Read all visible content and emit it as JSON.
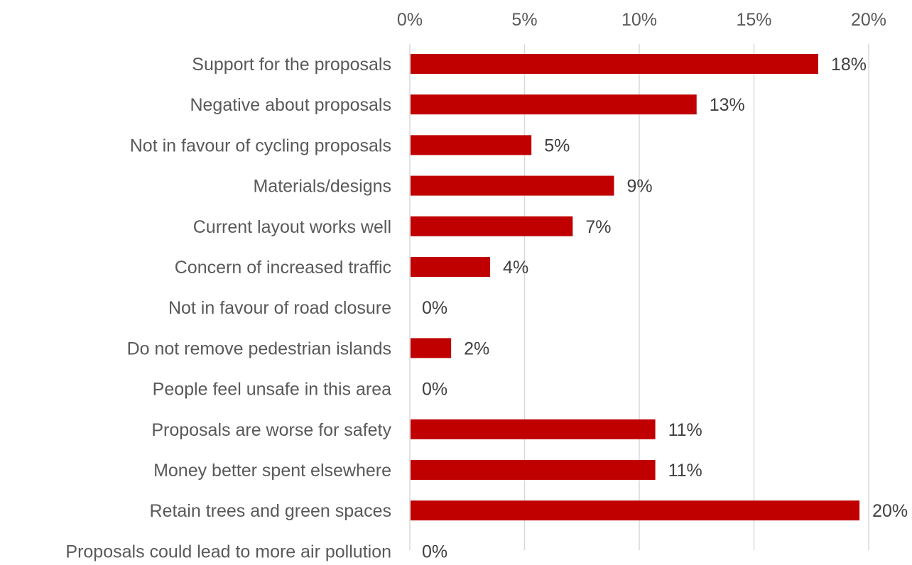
{
  "chart_data": {
    "type": "bar",
    "orientation": "horizontal",
    "categories": [
      "Support for the proposals",
      "Negative about proposals",
      "Not in favour of cycling proposals",
      "Materials/designs",
      "Current layout works well",
      "Concern of increased traffic",
      "Not in favour of road closure",
      "Do not remove pedestrian islands",
      "People feel unsafe in this area",
      "Proposals are worse for safety",
      "Money better spent elsewhere",
      "Retain trees and green spaces",
      "Proposals could lead to more air pollution"
    ],
    "values": [
      17.8,
      12.5,
      5.3,
      8.9,
      7.1,
      3.5,
      0,
      1.8,
      0,
      10.7,
      10.7,
      19.6,
      0
    ],
    "data_labels": [
      "18%",
      "13%",
      "5%",
      "9%",
      "7%",
      "4%",
      "0%",
      "2%",
      "0%",
      "11%",
      "11%",
      "20%",
      "0%"
    ],
    "xlim": [
      0,
      20
    ],
    "x_ticks": [
      0,
      5,
      10,
      15,
      20
    ],
    "x_tick_labels": [
      "0%",
      "5%",
      "10%",
      "15%",
      "20%"
    ],
    "x_axis_position": "top",
    "grid": true,
    "legend": "none",
    "bar_color": "#c00000"
  }
}
